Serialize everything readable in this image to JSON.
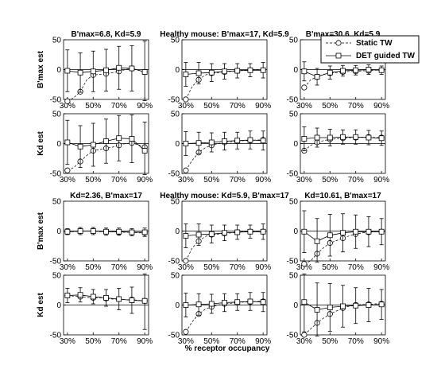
{
  "xlabel": "% receptor occupancy",
  "legend": {
    "placement": "top-right",
    "entries": [
      {
        "label": "Static TW",
        "marker": "circle",
        "line": "dashed"
      },
      {
        "label": "DET guided TW",
        "marker": "square",
        "line": "solid"
      }
    ]
  },
  "chart_data": [
    {
      "type": "line",
      "title": "B'max=6.8, Kd=5.9",
      "ylabel": "B'max est",
      "ylim": [
        -50,
        50
      ],
      "yticks": [
        -50,
        0,
        50
      ],
      "x": [
        30,
        35,
        40,
        45,
        50,
        55,
        60,
        65,
        70,
        75,
        80,
        85,
        90
      ],
      "xticklabels": [
        "30%",
        "50%",
        "70%",
        "90%"
      ],
      "xticks": [
        30,
        50,
        70,
        90
      ],
      "series": [
        {
          "name": "Static TW",
          "values": [
            -53,
            -47,
            -37,
            -17,
            -9,
            -8,
            -7,
            -5,
            -3,
            0,
            2,
            -1,
            -4
          ]
        },
        {
          "name": "DET guided TW",
          "values": [
            -2,
            null,
            -5,
            null,
            -3,
            null,
            -1,
            null,
            3,
            null,
            2,
            null,
            -4
          ],
          "err": [
            35,
            null,
            33,
            null,
            34,
            null,
            35,
            null,
            36,
            null,
            38,
            null,
            52
          ]
        }
      ]
    },
    {
      "type": "line",
      "title": "Healthy mouse: B'max=17, Kd=5.9",
      "ylabel": "",
      "ylim": [
        -50,
        50
      ],
      "yticks": [
        -50,
        0,
        50
      ],
      "x": [
        30,
        35,
        40,
        45,
        50,
        55,
        60,
        65,
        70,
        75,
        80,
        85,
        90
      ],
      "xticklabels": [
        "30%",
        "50%",
        "70%",
        "90%"
      ],
      "xticks": [
        30,
        50,
        70,
        90
      ],
      "series": [
        {
          "name": "Static TW",
          "values": [
            -50,
            -28,
            -17,
            -9,
            -6,
            -5,
            -4,
            -3,
            -2,
            -1,
            -1,
            0,
            -1
          ]
        },
        {
          "name": "DET guided TW",
          "values": [
            -8,
            null,
            -6,
            null,
            -5,
            null,
            -3,
            null,
            -2,
            null,
            -1,
            null,
            -1
          ],
          "err": [
            20,
            null,
            18,
            null,
            15,
            null,
            13,
            null,
            12,
            null,
            11,
            null,
            13
          ]
        }
      ]
    },
    {
      "type": "line",
      "title": "B'max=30.6, Kd=5.9",
      "ylabel": "",
      "ylim": [
        -50,
        50
      ],
      "yticks": [
        -50,
        0,
        50
      ],
      "x": [
        30,
        35,
        40,
        45,
        50,
        55,
        60,
        65,
        70,
        75,
        80,
        85,
        90
      ],
      "xticklabels": [
        "30%",
        "50%",
        "70%",
        "90%"
      ],
      "xticks": [
        30,
        50,
        70,
        90
      ],
      "series": [
        {
          "name": "Static TW",
          "values": [
            -30,
            -17,
            -12,
            -8,
            -6,
            -5,
            -4,
            -3,
            -3,
            -2,
            -2,
            -1,
            -1
          ]
        },
        {
          "name": "DET guided TW",
          "values": [
            -3,
            null,
            -12,
            null,
            -5,
            null,
            -2,
            null,
            -1,
            null,
            0,
            null,
            -1
          ],
          "err": [
            16,
            null,
            14,
            null,
            11,
            null,
            9,
            null,
            8,
            null,
            8,
            null,
            7
          ]
        }
      ]
    },
    {
      "type": "line",
      "title": "",
      "ylabel": "Kd est",
      "ylim": [
        -50,
        50
      ],
      "yticks": [
        -50,
        0,
        50
      ],
      "x": [
        30,
        35,
        40,
        45,
        50,
        55,
        60,
        65,
        70,
        75,
        80,
        85,
        90
      ],
      "xticklabels": [
        "30%",
        "50%",
        "70%",
        "90%"
      ],
      "xticks": [
        30,
        50,
        70,
        90
      ],
      "series": [
        {
          "name": "Static TW",
          "values": [
            -45,
            -40,
            -30,
            -20,
            -12,
            -10,
            -8,
            -6,
            -3,
            0,
            1,
            -2,
            -6
          ]
        },
        {
          "name": "DET guided TW",
          "values": [
            2,
            null,
            -5,
            null,
            -2,
            null,
            4,
            null,
            9,
            null,
            8,
            null,
            -12
          ],
          "err": [
            37,
            null,
            35,
            null,
            36,
            null,
            37,
            null,
            38,
            null,
            40,
            null,
            48
          ]
        }
      ]
    },
    {
      "type": "line",
      "title": "",
      "ylabel": "",
      "ylim": [
        -50,
        50
      ],
      "yticks": [
        -50,
        0,
        50
      ],
      "x": [
        30,
        35,
        40,
        45,
        50,
        55,
        60,
        65,
        70,
        75,
        80,
        85,
        90
      ],
      "xticklabels": [
        "30%",
        "50%",
        "70%",
        "90%"
      ],
      "xticks": [
        30,
        50,
        70,
        90
      ],
      "series": [
        {
          "name": "Static TW",
          "values": [
            -45,
            -28,
            -15,
            -7,
            -3,
            0,
            2,
            3,
            4,
            5,
            5,
            6,
            6
          ]
        },
        {
          "name": "DET guided TW",
          "values": [
            0,
            null,
            1,
            null,
            2,
            null,
            4,
            null,
            5,
            null,
            6,
            null,
            5
          ],
          "err": [
            20,
            null,
            18,
            null,
            16,
            null,
            15,
            null,
            14,
            null,
            15,
            null,
            16
          ]
        }
      ]
    },
    {
      "type": "line",
      "title": "",
      "ylabel": "",
      "ylim": [
        -50,
        50
      ],
      "yticks": [
        -50,
        0,
        50
      ],
      "x": [
        30,
        35,
        40,
        45,
        50,
        55,
        60,
        65,
        70,
        75,
        80,
        85,
        90
      ],
      "xticklabels": [
        "30%",
        "50%",
        "70%",
        "90%"
      ],
      "xticks": [
        30,
        50,
        70,
        90
      ],
      "series": [
        {
          "name": "Static TW",
          "values": [
            -12,
            -3,
            2,
            5,
            7,
            8,
            9,
            10,
            10,
            11,
            11,
            10,
            10
          ]
        },
        {
          "name": "DET guided TW",
          "values": [
            8,
            null,
            10,
            null,
            10,
            null,
            11,
            null,
            11,
            null,
            10,
            null,
            9
          ],
          "err": [
            20,
            null,
            16,
            null,
            14,
            null,
            12,
            null,
            12,
            null,
            12,
            null,
            12
          ]
        }
      ]
    },
    {
      "type": "line",
      "title": "Kd=2.36, B'max=17",
      "ylabel": "B'max est",
      "ylim": [
        -50,
        50
      ],
      "yticks": [
        -50,
        0,
        50
      ],
      "x": [
        30,
        35,
        40,
        45,
        50,
        55,
        60,
        65,
        70,
        75,
        80,
        85,
        90
      ],
      "xticklabels": [
        "30%",
        "50%",
        "70%",
        "90%"
      ],
      "xticks": [
        30,
        50,
        70,
        90
      ],
      "series": [
        {
          "name": "Static TW",
          "values": [
            -1,
            -1,
            0,
            0,
            0,
            -1,
            -1,
            -1,
            -2,
            -2,
            -2,
            -3,
            -3
          ]
        },
        {
          "name": "DET guided TW",
          "values": [
            -1,
            null,
            0,
            null,
            0,
            null,
            -1,
            null,
            -1,
            null,
            -2,
            null,
            -2
          ],
          "err": [
            5,
            null,
            6,
            null,
            6,
            null,
            6,
            null,
            6,
            null,
            6,
            null,
            7
          ]
        }
      ]
    },
    {
      "type": "line",
      "title": "Healthy mouse: Kd=5.9, B'max=17",
      "ylabel": "",
      "ylim": [
        -50,
        50
      ],
      "yticks": [
        -50,
        0,
        50
      ],
      "x": [
        30,
        35,
        40,
        45,
        50,
        55,
        60,
        65,
        70,
        75,
        80,
        85,
        90
      ],
      "xticklabels": [
        "30%",
        "50%",
        "70%",
        "90%"
      ],
      "xticks": [
        30,
        50,
        70,
        90
      ],
      "series": [
        {
          "name": "Static TW",
          "values": [
            -50,
            -28,
            -17,
            -9,
            -6,
            -5,
            -4,
            -3,
            -2,
            -1,
            -1,
            0,
            -1
          ]
        },
        {
          "name": "DET guided TW",
          "values": [
            -8,
            null,
            -6,
            null,
            -5,
            null,
            -3,
            null,
            -2,
            null,
            -1,
            null,
            -1
          ],
          "err": [
            20,
            null,
            18,
            null,
            15,
            null,
            13,
            null,
            12,
            null,
            11,
            null,
            13
          ]
        }
      ]
    },
    {
      "type": "line",
      "title": "Kd=10.61, B'max=17",
      "ylabel": "",
      "ylim": [
        -50,
        50
      ],
      "yticks": [
        -50,
        0,
        50
      ],
      "x": [
        30,
        35,
        40,
        45,
        50,
        55,
        60,
        65,
        70,
        75,
        80,
        85,
        90
      ],
      "xticklabels": [
        "30%",
        "50%",
        "70%",
        "90%"
      ],
      "xticks": [
        30,
        50,
        70,
        90
      ],
      "series": [
        {
          "name": "Static TW",
          "values": [
            -55,
            -50,
            -38,
            -28,
            -20,
            -16,
            -12,
            -8,
            -5,
            -3,
            -2,
            -1,
            -1
          ]
        },
        {
          "name": "DET guided TW",
          "values": [
            -1,
            null,
            -17,
            null,
            -7,
            null,
            -3,
            null,
            -1,
            null,
            -1,
            null,
            -1
          ],
          "err": [
            35,
            null,
            38,
            null,
            35,
            null,
            32,
            null,
            28,
            null,
            25,
            null,
            22
          ]
        }
      ]
    },
    {
      "type": "line",
      "title": "",
      "ylabel": "Kd est",
      "ylim": [
        -50,
        50
      ],
      "yticks": [
        -50,
        0,
        50
      ],
      "x": [
        30,
        35,
        40,
        45,
        50,
        55,
        60,
        65,
        70,
        75,
        80,
        85,
        90
      ],
      "xticklabels": [
        "30%",
        "50%",
        "70%",
        "90%"
      ],
      "xticks": [
        30,
        50,
        70,
        90
      ],
      "series": [
        {
          "name": "Static TW",
          "values": [
            16,
            15,
            14,
            13,
            12,
            12,
            11,
            10,
            10,
            9,
            9,
            8,
            7
          ]
        },
        {
          "name": "DET guided TW",
          "values": [
            16,
            null,
            17,
            null,
            14,
            null,
            12,
            null,
            10,
            null,
            8,
            null,
            7
          ],
          "err": [
            12,
            null,
            12,
            null,
            12,
            null,
            14,
            null,
            18,
            null,
            22,
            null,
            48
          ]
        }
      ]
    },
    {
      "type": "line",
      "title": "",
      "ylabel": "",
      "ylim": [
        -50,
        50
      ],
      "yticks": [
        -50,
        0,
        50
      ],
      "x": [
        30,
        35,
        40,
        45,
        50,
        55,
        60,
        65,
        70,
        75,
        80,
        85,
        90
      ],
      "xticklabels": [
        "30%",
        "50%",
        "70%",
        "90%"
      ],
      "xticks": [
        30,
        50,
        70,
        90
      ],
      "series": [
        {
          "name": "Static TW",
          "values": [
            -45,
            -28,
            -15,
            -7,
            -3,
            0,
            2,
            3,
            4,
            5,
            5,
            6,
            6
          ]
        },
        {
          "name": "DET guided TW",
          "values": [
            0,
            null,
            1,
            null,
            2,
            null,
            4,
            null,
            5,
            null,
            6,
            null,
            5
          ],
          "err": [
            20,
            null,
            18,
            null,
            16,
            null,
            15,
            null,
            14,
            null,
            15,
            null,
            16
          ]
        }
      ]
    },
    {
      "type": "line",
      "title": "",
      "ylabel": "",
      "ylim": [
        -50,
        50
      ],
      "yticks": [
        -50,
        0,
        50
      ],
      "x": [
        30,
        35,
        40,
        45,
        50,
        55,
        60,
        65,
        70,
        75,
        80,
        85,
        90
      ],
      "xticklabels": [
        "30%",
        "50%",
        "70%",
        "90%"
      ],
      "xticks": [
        30,
        50,
        70,
        90
      ],
      "series": [
        {
          "name": "Static TW",
          "values": [
            -50,
            -40,
            -30,
            -22,
            -15,
            -10,
            -5,
            -2,
            0,
            1,
            1,
            2,
            2
          ]
        },
        {
          "name": "DET guided TW",
          "values": [
            5,
            null,
            -8,
            null,
            -4,
            null,
            -2,
            null,
            -1,
            null,
            0,
            null,
            1
          ],
          "err": [
            50,
            null,
            45,
            null,
            40,
            null,
            35,
            null,
            30,
            null,
            28,
            null,
            25
          ]
        }
      ]
    }
  ]
}
